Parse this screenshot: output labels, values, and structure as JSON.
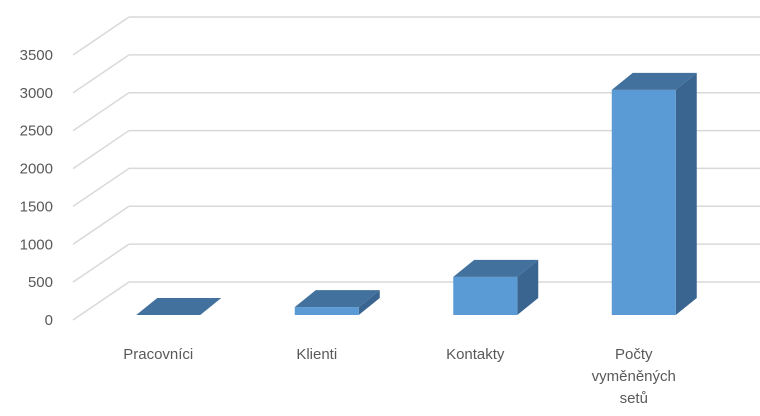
{
  "chart_data": {
    "type": "bar",
    "categories": [
      "Pracovníci",
      "Klienti",
      "Kontakty",
      "Počty vyměněných setů"
    ],
    "category_lines": [
      [
        "Pracovníci"
      ],
      [
        "Klienti"
      ],
      [
        "Kontakty"
      ],
      [
        "Počty",
        "vyměněných",
        "setů"
      ]
    ],
    "values": [
      5,
      170,
      570,
      3040
    ],
    "ylim": [
      0,
      3500
    ],
    "yticks": [
      "0",
      "500",
      "1000",
      "1500",
      "2000",
      "2500",
      "3000",
      "3500"
    ],
    "grid": true,
    "colors": {
      "front": "#5b9bd5",
      "top": "#41719c",
      "side": "#3a6591",
      "grid": "#d9d9d9",
      "text": "#595959"
    }
  }
}
